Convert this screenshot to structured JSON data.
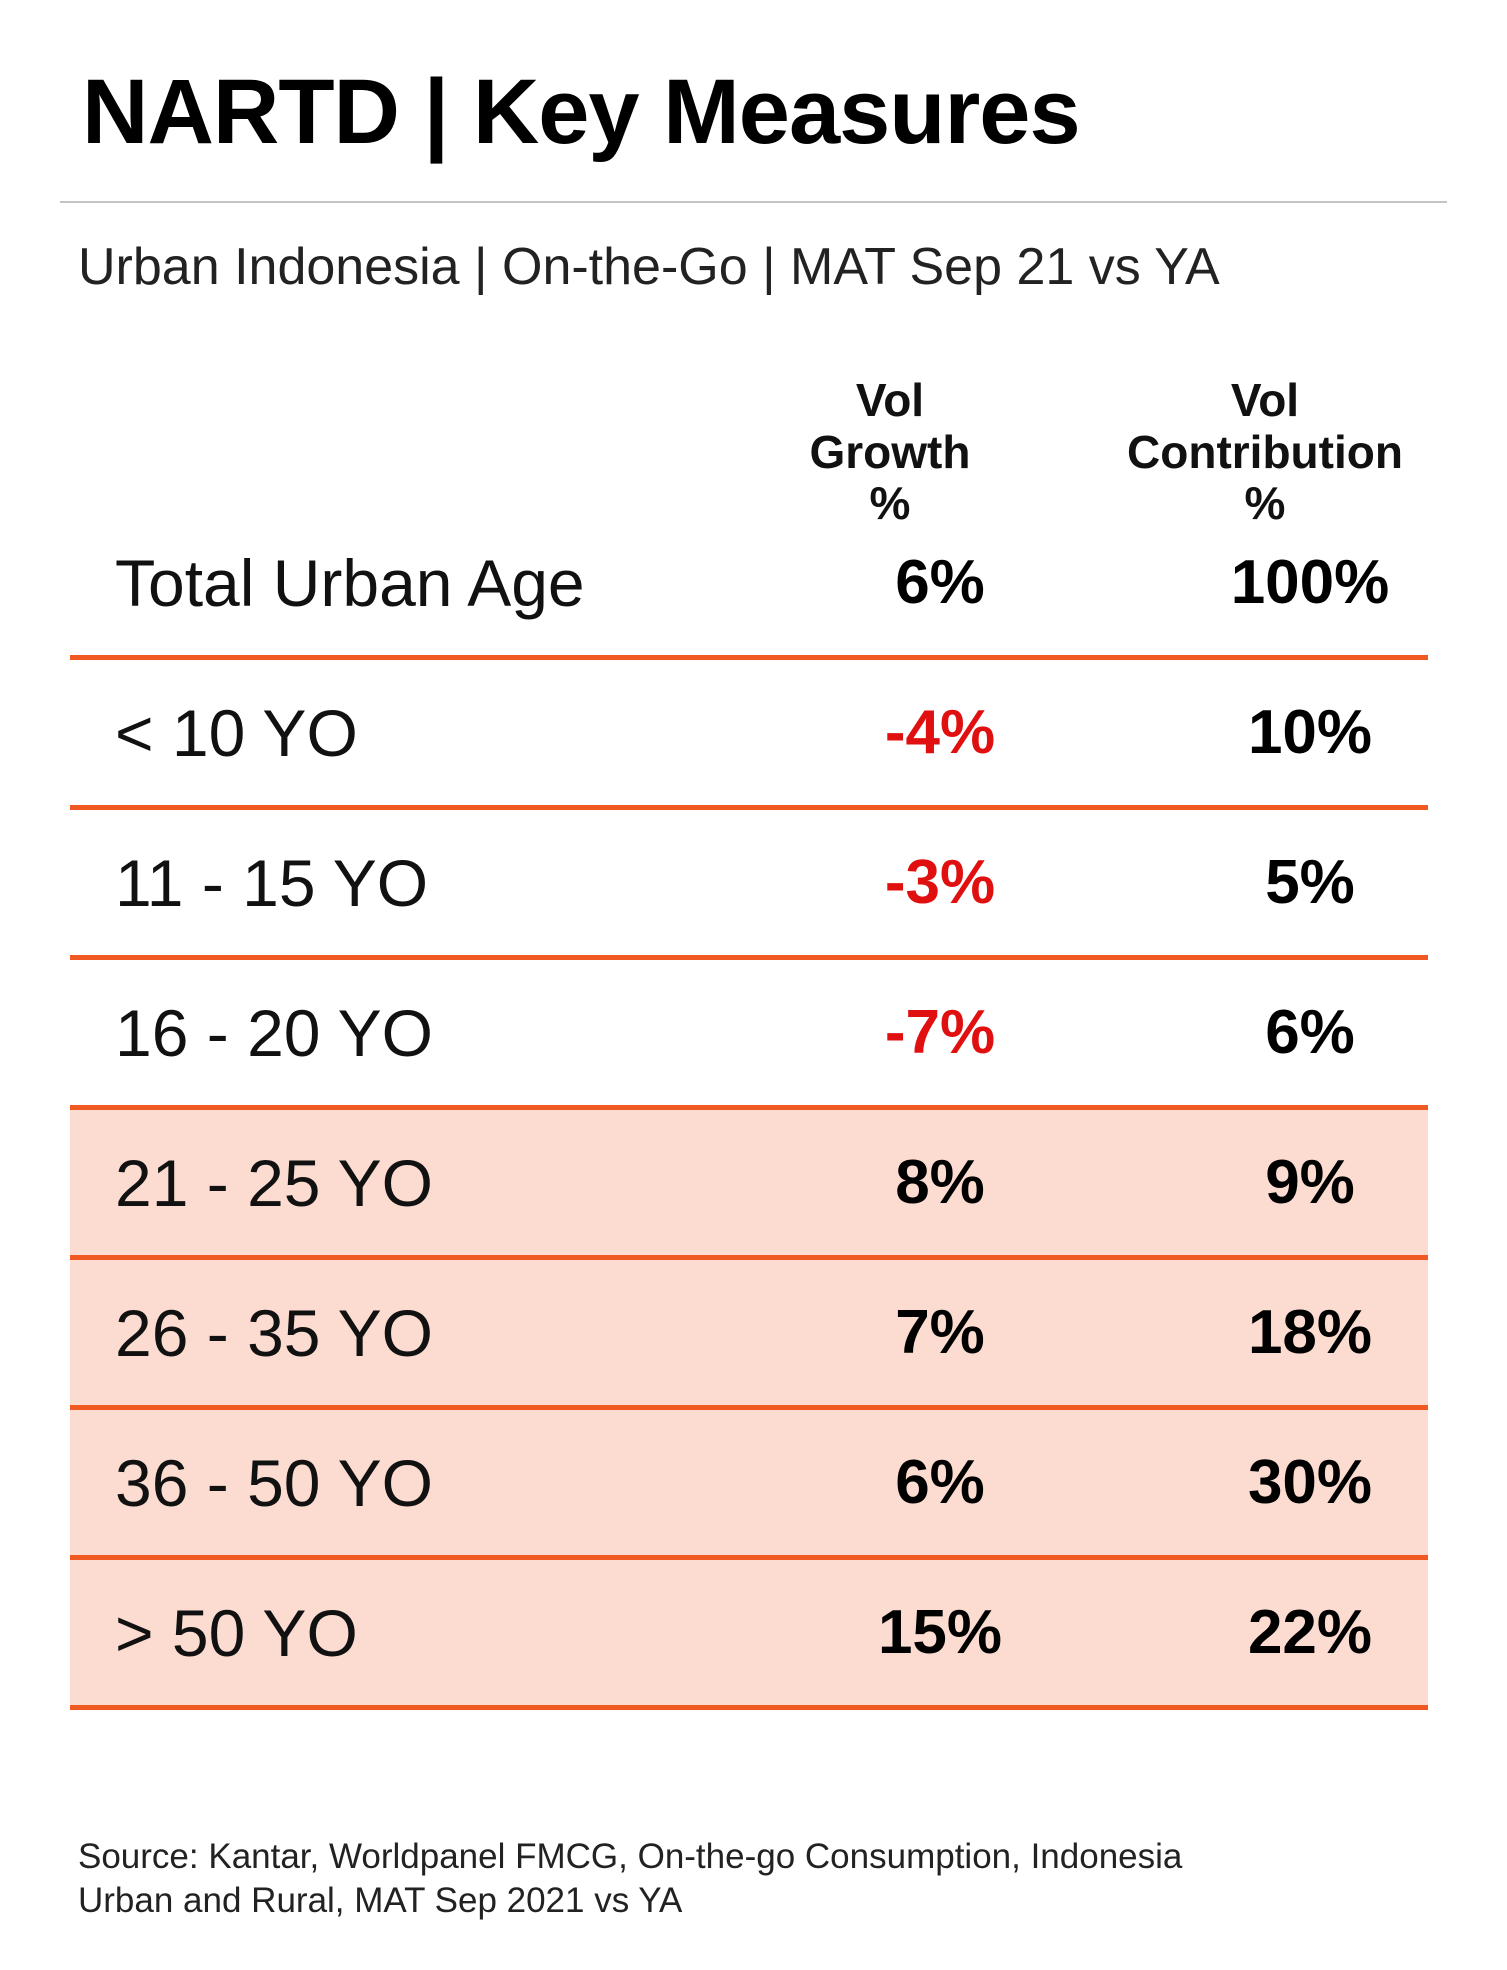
{
  "header": {
    "title": "NARTD | Key Measures",
    "subtitle": "Urban Indonesia | On-the-Go | MAT Sep 21 vs YA"
  },
  "columns": {
    "growth": [
      "Vol",
      "Growth",
      "%"
    ],
    "contribution": [
      "Vol",
      "Contribution",
      "%"
    ]
  },
  "colors": {
    "accent_line": "#f05a22",
    "highlight_fill": "#fcdbd0",
    "negative_text": "#e01010"
  },
  "chart_data": {
    "type": "table",
    "title": "NARTD | Key Measures",
    "subtitle": "Urban Indonesia | On-the-Go | MAT Sep 21 vs YA",
    "columns": [
      "Vol Growth %",
      "Vol Contribution %"
    ],
    "rows": [
      {
        "label": "Total Urban Age",
        "growth": "6%",
        "contribution": "100%",
        "growth_value": 6,
        "contribution_value": 100,
        "highlighted": false
      },
      {
        "label": "< 10 YO",
        "growth": "-4%",
        "contribution": "10%",
        "growth_value": -4,
        "contribution_value": 10,
        "highlighted": false
      },
      {
        "label": "11 - 15 YO",
        "growth": "-3%",
        "contribution": "5%",
        "growth_value": -3,
        "contribution_value": 5,
        "highlighted": false
      },
      {
        "label": "16 - 20 YO",
        "growth": "-7%",
        "contribution": "6%",
        "growth_value": -7,
        "contribution_value": 6,
        "highlighted": false
      },
      {
        "label": "21 - 25 YO",
        "growth": "8%",
        "contribution": "9%",
        "growth_value": 8,
        "contribution_value": 9,
        "highlighted": true
      },
      {
        "label": "26 - 35 YO",
        "growth": "7%",
        "contribution": "18%",
        "growth_value": 7,
        "contribution_value": 18,
        "highlighted": true
      },
      {
        "label": "36 - 50 YO",
        "growth": "6%",
        "contribution": "30%",
        "growth_value": 6,
        "contribution_value": 30,
        "highlighted": true
      },
      {
        "label": "> 50 YO",
        "growth": "15%",
        "contribution": "22%",
        "growth_value": 15,
        "contribution_value": 22,
        "highlighted": true
      }
    ]
  },
  "footer": {
    "source_lines": [
      "Source: Kantar, Worldpanel FMCG, On-the-go Consumption, Indonesia",
      "Urban and Rural, MAT Sep 2021 vs YA"
    ]
  }
}
